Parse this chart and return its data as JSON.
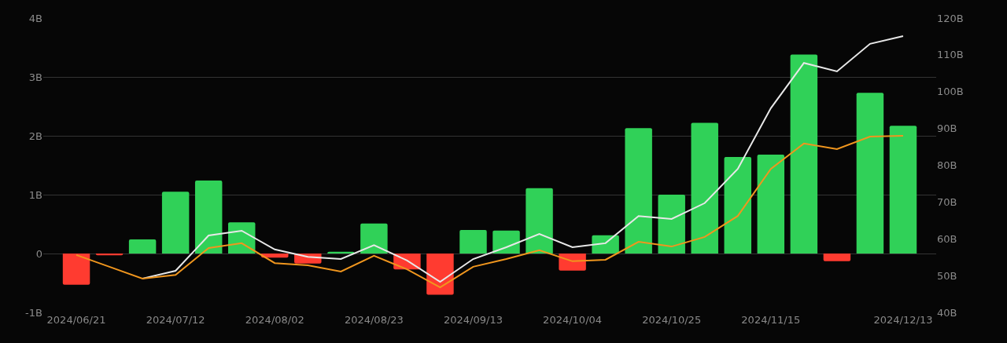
{
  "chart_data": {
    "type": "bar",
    "x": [
      "2024-06-21",
      "2024-06-28",
      "2024-07-05",
      "2024-07-12",
      "2024-07-19",
      "2024-07-26",
      "2024-08-02",
      "2024-08-09",
      "2024-08-16",
      "2024-08-23",
      "2024-08-30",
      "2024-09-06",
      "2024-09-13",
      "2024-09-20",
      "2024-09-27",
      "2024-10-04",
      "2024-10-11",
      "2024-10-18",
      "2024-10-25",
      "2024-11-01",
      "2024-11-08",
      "2024-11-15",
      "2024-11-22",
      "2024-11-29",
      "2024-12-06",
      "2024-12-13"
    ],
    "series": [
      {
        "colors": [
          "#ff3b30",
          "#ff3b30",
          "#30d158",
          "#30d158",
          "#30d158",
          "#30d158",
          "#ff3b30",
          "#ff3b30",
          "#30d158",
          "#30d158",
          "#ff3b30",
          "#ff3b30",
          "#30d158",
          "#30d158",
          "#30d158",
          "#ff3b30",
          "#30d158",
          "#30d158",
          "#30d158",
          "#30d158",
          "#30d158",
          "#30d158",
          "#30d158",
          "#ff3b30",
          "#30d158",
          "#30d158"
        ],
        "values": [
          -0.53,
          -0.03,
          0.24,
          1.05,
          1.24,
          0.53,
          -0.07,
          -0.17,
          0.03,
          0.51,
          -0.27,
          -0.7,
          0.4,
          0.39,
          1.11,
          -0.29,
          0.31,
          2.13,
          1.0,
          2.22,
          1.64,
          1.68,
          3.38,
          -0.13,
          2.73,
          2.17
        ]
      },
      {
        "type": "line",
        "axis": "y2",
        "color": "#e8e8e8",
        "values": [
          null,
          null,
          49.2,
          51.3,
          60.9,
          62.2,
          57.1,
          55.1,
          54.5,
          58.3,
          54.1,
          48.3,
          54.5,
          57.7,
          61.3,
          57.7,
          58.8,
          66.2,
          65.4,
          69.7,
          79.0,
          95.5,
          107.8,
          105.5,
          113.0,
          115.1
        ]
      },
      {
        "type": "line",
        "axis": "y2",
        "color": "#f0961e",
        "values": [
          55.6,
          52.4,
          49.2,
          50.2,
          57.5,
          58.8,
          53.4,
          52.8,
          51.1,
          55.4,
          51.7,
          46.8,
          52.4,
          54.5,
          56.9,
          53.9,
          54.3,
          59.2,
          57.9,
          60.5,
          66.2,
          79.0,
          85.9,
          84.4,
          87.8,
          88.0
        ]
      }
    ],
    "xlim": [
      "2024-06-14",
      "2024-12-20"
    ],
    "xticks": [
      {
        "value": "2024-06-21",
        "label": "2024/06/21"
      },
      {
        "value": "2024-07-12",
        "label": "2024/07/12"
      },
      {
        "value": "2024-08-02",
        "label": "2024/08/02"
      },
      {
        "value": "2024-08-23",
        "label": "2024/08/23"
      },
      {
        "value": "2024-09-13",
        "label": "2024/09/13"
      },
      {
        "value": "2024-10-04",
        "label": "2024/10/04"
      },
      {
        "value": "2024-10-25",
        "label": "2024/10/25"
      },
      {
        "value": "2024-11-15",
        "label": "2024/11/15"
      },
      {
        "value": "2024-12-13",
        "label": "2024/12/13"
      }
    ],
    "ylim": [
      -1,
      4
    ],
    "yticks": [
      {
        "value": -1,
        "label": "-1B"
      },
      {
        "value": 0,
        "label": "0"
      },
      {
        "value": 1,
        "label": "1B"
      },
      {
        "value": 2,
        "label": "2B"
      },
      {
        "value": 3,
        "label": "3B"
      },
      {
        "value": 4,
        "label": "4B"
      }
    ],
    "y2lim": [
      40,
      120
    ],
    "y2ticks": [
      {
        "value": 40,
        "label": "40B"
      },
      {
        "value": 50,
        "label": "50B"
      },
      {
        "value": 60,
        "label": "60B"
      },
      {
        "value": 70,
        "label": "70B"
      },
      {
        "value": 80,
        "label": "80B"
      },
      {
        "value": 90,
        "label": "90B"
      },
      {
        "value": 100,
        "label": "100B"
      },
      {
        "value": 110,
        "label": "110B"
      },
      {
        "value": 120,
        "label": "120B"
      }
    ],
    "grid": "y",
    "marker": "none",
    "line_style": "solid"
  }
}
